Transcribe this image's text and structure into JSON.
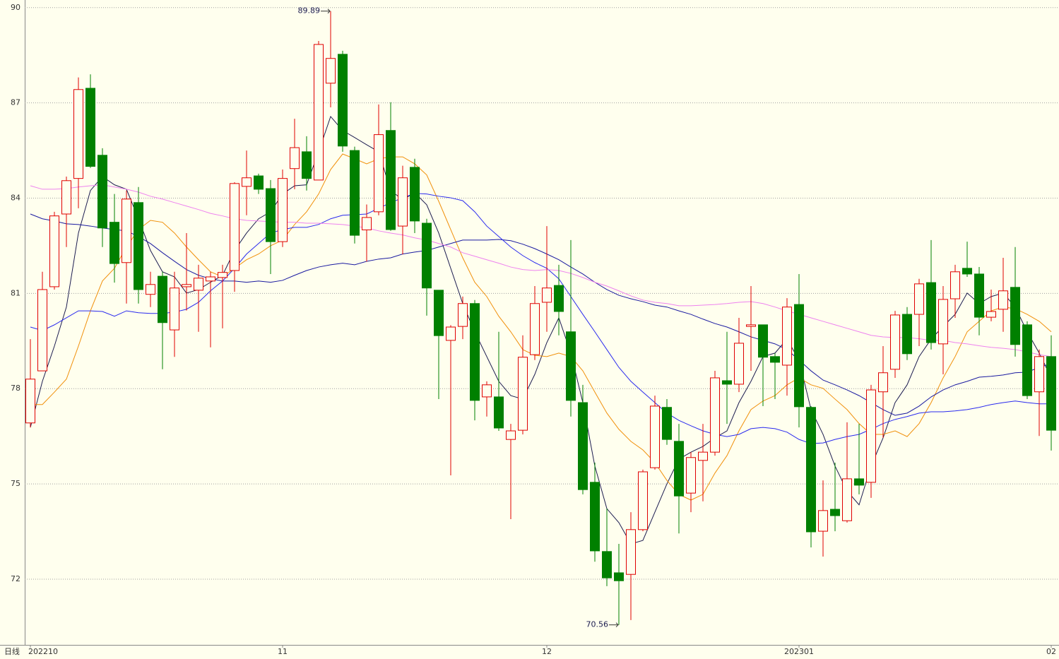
{
  "chart_data": {
    "type": "candlestick",
    "axis_label": "日线",
    "ylim": [
      69.93,
      90.24
    ],
    "yticks": [
      72,
      75,
      78,
      81,
      84,
      87,
      90
    ],
    "grid": true,
    "up_color": "#e00000",
    "down_color": "#008000",
    "categories": [
      "202210",
      null,
      null,
      null,
      null,
      null,
      null,
      null,
      null,
      null,
      null,
      null,
      null,
      null,
      null,
      null,
      null,
      null,
      null,
      null,
      null,
      "11",
      null,
      null,
      null,
      null,
      null,
      null,
      null,
      null,
      null,
      null,
      null,
      null,
      null,
      null,
      null,
      null,
      null,
      null,
      null,
      null,
      null,
      "12",
      null,
      null,
      null,
      null,
      null,
      null,
      null,
      null,
      null,
      null,
      null,
      null,
      null,
      null,
      null,
      null,
      null,
      null,
      null,
      null,
      "202301",
      null,
      null,
      null,
      null,
      null,
      null,
      null,
      null,
      null,
      null,
      null,
      null,
      null,
      null,
      null,
      null,
      null,
      null,
      null,
      null,
      "02"
    ],
    "open": [
      76.92,
      78.56,
      81.21,
      83.5,
      84.62,
      87.46,
      85.35,
      83.24,
      81.97,
      83.86,
      80.97,
      81.54,
      79.85,
      81.21,
      81.1,
      81.39,
      81.5,
      81.72,
      84.37,
      84.7,
      84.3,
      82.63,
      84.93,
      85.46,
      84.57,
      87.62,
      88.53,
      85.5,
      83.0,
      83.57,
      86.13,
      83.12,
      84.97,
      83.21,
      81.1,
      79.52,
      79.96,
      80.68,
      77.74,
      77.74,
      76.4,
      76.69,
      79.07,
      80.72,
      81.25,
      79.79,
      77.56,
      75.05,
      72.87,
      72.2,
      72.15,
      73.56,
      75.51,
      77.41,
      76.34,
      74.71,
      75.74,
      76.0,
      78.25,
      78.14,
      79.96,
      80.01,
      79.01,
      78.74,
      80.65,
      77.41,
      73.51,
      74.2,
      73.84,
      75.16,
      75.05,
      77.9,
      78.61,
      80.34,
      80.34,
      81.34,
      79.41,
      80.83,
      81.79,
      81.61,
      80.25,
      80.5,
      81.19,
      80.01,
      77.9,
      79.01
    ],
    "high": [
      79.56,
      81.68,
      83.57,
      84.68,
      87.8,
      87.9,
      85.57,
      84.13,
      84.24,
      84.35,
      81.68,
      81.68,
      81.68,
      82.9,
      81.9,
      81.68,
      81.9,
      84.5,
      85.5,
      84.77,
      84.57,
      84.9,
      86.5,
      85.95,
      88.95,
      89.89,
      88.64,
      85.62,
      83.8,
      86.95,
      87.02,
      85.02,
      85.24,
      83.35,
      81.1,
      80.0,
      80.9,
      80.79,
      78.23,
      79.79,
      76.89,
      79.68,
      81.23,
      83.12,
      81.9,
      82.68,
      78.12,
      75.67,
      74.22,
      73.11,
      74.11,
      75.45,
      77.78,
      77.67,
      76.89,
      76.0,
      76.89,
      78.56,
      79.79,
      80.23,
      81.23,
      80.01,
      79.12,
      80.85,
      81.61,
      77.45,
      75.11,
      75.67,
      76.94,
      76.89,
      78.12,
      79.34,
      80.45,
      80.57,
      81.46,
      82.68,
      81.23,
      81.9,
      82.63,
      81.83,
      81.12,
      82.12,
      82.46,
      80.12,
      79.23,
      79.68
    ],
    "low": [
      76.78,
      78.56,
      81.12,
      82.46,
      83.68,
      84.95,
      82.46,
      81.34,
      80.68,
      80.68,
      80.57,
      78.61,
      79.0,
      80.46,
      79.79,
      79.3,
      79.9,
      81.05,
      83.46,
      84.13,
      81.61,
      82.46,
      84.28,
      84.24,
      84.57,
      86.86,
      85.46,
      82.57,
      82.0,
      83.46,
      82.97,
      82.23,
      82.9,
      80.3,
      77.67,
      75.27,
      79.56,
      77.0,
      77.12,
      76.67,
      73.89,
      76.56,
      78.9,
      79.79,
      79.68,
      77.12,
      74.67,
      72.55,
      71.78,
      70.56,
      70.71,
      73.51,
      75.45,
      76.23,
      73.44,
      74.11,
      74.45,
      75.89,
      76.89,
      77.89,
      78.56,
      77.45,
      77.67,
      77.78,
      76.78,
      73.0,
      72.71,
      73.51,
      73.78,
      74.67,
      74.56,
      76.45,
      78.34,
      78.9,
      79.34,
      79.23,
      78.45,
      80.23,
      81.52,
      79.68,
      80.12,
      79.79,
      79.01,
      77.67,
      76.51,
      76.05
    ],
    "close": [
      78.3,
      81.12,
      83.44,
      84.55,
      87.42,
      85.0,
      83.06,
      81.94,
      83.97,
      81.12,
      81.28,
      80.08,
      81.17,
      81.28,
      81.48,
      81.52,
      81.66,
      84.46,
      84.64,
      84.28,
      82.63,
      84.62,
      85.59,
      84.62,
      88.84,
      88.4,
      85.64,
      82.83,
      83.39,
      86.0,
      83.01,
      84.64,
      83.28,
      81.17,
      79.67,
      79.94,
      80.68,
      77.63,
      78.12,
      76.76,
      76.67,
      78.99,
      80.68,
      81.17,
      80.43,
      77.63,
      74.82,
      72.89,
      72.04,
      71.95,
      73.56,
      75.38,
      77.45,
      76.4,
      74.62,
      75.83,
      76.0,
      78.34,
      78.14,
      79.43,
      80.01,
      78.99,
      78.83,
      80.57,
      77.43,
      73.49,
      74.16,
      74.0,
      75.16,
      74.96,
      77.96,
      78.5,
      80.32,
      79.1,
      81.3,
      79.45,
      80.81,
      81.68,
      81.61,
      80.25,
      80.43,
      81.08,
      79.39,
      77.78,
      79.01,
      76.69
    ],
    "lines": [
      {
        "color": "#1c1c50",
        "values": [
          76.78,
          78.23,
          79.34,
          80.57,
          82.9,
          84.24,
          84.68,
          84.42,
          84.28,
          83.35,
          82.35,
          81.68,
          81.52,
          81.01,
          81.12,
          81.35,
          81.57,
          82.35,
          82.9,
          83.35,
          83.57,
          84.13,
          84.39,
          84.42,
          85.46,
          86.57,
          86.13,
          85.91,
          85.68,
          85.46,
          84.24,
          83.95,
          84.17,
          83.79,
          82.9,
          81.79,
          80.68,
          79.79,
          79.01,
          78.23,
          77.78,
          77.67,
          78.45,
          79.45,
          80.23,
          79.12,
          77.56,
          75.56,
          74.22,
          73.78,
          73.11,
          73.22,
          74.11,
          75.0,
          75.78,
          76.0,
          76.18,
          76.45,
          76.67,
          77.56,
          78.23,
          79.01,
          79.12,
          79.56,
          78.9,
          77.34,
          76.56,
          75.56,
          74.78,
          74.34,
          75.56,
          76.45,
          77.56,
          78.12,
          79.01,
          79.56,
          79.96,
          80.34,
          81.01,
          80.68,
          80.9,
          81.01,
          80.57,
          79.79,
          79.12,
          78.34
        ]
      },
      {
        "color": "#f0900a",
        "values": [
          77.5,
          77.5,
          77.89,
          78.3,
          79.34,
          80.45,
          81.39,
          81.79,
          82.46,
          83.01,
          83.3,
          83.24,
          82.9,
          82.46,
          82.06,
          81.68,
          81.52,
          81.79,
          82.06,
          82.24,
          82.5,
          82.68,
          83.17,
          83.57,
          84.13,
          84.9,
          85.39,
          85.24,
          85.08,
          85.24,
          85.3,
          85.3,
          85.08,
          84.73,
          83.9,
          83.01,
          82.12,
          81.35,
          80.9,
          80.28,
          79.79,
          79.23,
          79.05,
          79.01,
          79.12,
          79.01,
          78.56,
          77.89,
          77.23,
          76.72,
          76.34,
          76.07,
          75.67,
          75.11,
          74.67,
          74.49,
          74.67,
          75.34,
          75.89,
          76.67,
          77.34,
          77.61,
          77.78,
          78.12,
          78.34,
          78.12,
          78.01,
          77.67,
          77.34,
          76.9,
          76.56,
          76.56,
          76.67,
          76.49,
          76.9,
          77.56,
          78.34,
          79.01,
          79.79,
          80.12,
          80.45,
          80.57,
          80.52,
          80.34,
          80.12,
          79.79
        ]
      },
      {
        "color": "#1a1aa0",
        "values": [
          83.5,
          83.35,
          83.28,
          83.19,
          83.17,
          83.12,
          83.06,
          83.01,
          82.97,
          82.79,
          82.57,
          82.28,
          82.01,
          81.75,
          81.57,
          81.46,
          81.39,
          81.39,
          81.35,
          81.39,
          81.35,
          81.41,
          81.57,
          81.72,
          81.83,
          81.9,
          81.95,
          81.9,
          82.01,
          82.08,
          82.12,
          82.24,
          82.3,
          82.35,
          82.46,
          82.57,
          82.68,
          82.68,
          82.68,
          82.7,
          82.66,
          82.55,
          82.41,
          82.24,
          82.06,
          81.83,
          81.61,
          81.35,
          81.12,
          80.94,
          80.83,
          80.74,
          80.63,
          80.57,
          80.45,
          80.34,
          80.19,
          80.05,
          79.94,
          79.79,
          79.63,
          79.52,
          79.41,
          79.23,
          78.9,
          78.56,
          78.27,
          78.12,
          77.96,
          77.78,
          77.56,
          77.34,
          77.16,
          77.23,
          77.45,
          77.74,
          77.96,
          78.12,
          78.23,
          78.36,
          78.39,
          78.43,
          78.5,
          78.52,
          78.67,
          78.79
        ]
      },
      {
        "color": "#2a2aee",
        "values": [
          79.94,
          79.83,
          80.01,
          80.23,
          80.45,
          80.45,
          80.43,
          80.28,
          80.45,
          80.39,
          80.37,
          80.37,
          80.41,
          80.5,
          80.72,
          81.08,
          81.39,
          81.79,
          82.24,
          82.57,
          82.9,
          83.01,
          83.08,
          83.08,
          83.17,
          83.35,
          83.46,
          83.48,
          83.5,
          83.68,
          83.86,
          84.01,
          84.15,
          84.13,
          84.06,
          84.01,
          83.92,
          83.57,
          83.12,
          82.79,
          82.46,
          82.19,
          81.97,
          81.79,
          81.46,
          80.9,
          80.34,
          79.79,
          79.23,
          78.67,
          78.23,
          77.89,
          77.56,
          77.23,
          77.0,
          76.83,
          76.67,
          76.56,
          76.49,
          76.56,
          76.74,
          76.78,
          76.74,
          76.63,
          76.4,
          76.27,
          76.29,
          76.4,
          76.49,
          76.56,
          76.72,
          76.9,
          77.03,
          77.12,
          77.23,
          77.27,
          77.27,
          77.3,
          77.34,
          77.41,
          77.5,
          77.56,
          77.61,
          77.56,
          77.52,
          77.52
        ]
      },
      {
        "color": "#ee82ee",
        "values": [
          84.39,
          84.28,
          84.28,
          84.3,
          84.35,
          84.39,
          84.42,
          84.35,
          84.28,
          84.19,
          84.06,
          83.97,
          83.86,
          83.75,
          83.64,
          83.52,
          83.44,
          83.35,
          83.3,
          83.28,
          83.26,
          83.24,
          83.24,
          83.21,
          83.21,
          83.19,
          83.17,
          83.12,
          83.06,
          82.97,
          82.9,
          82.84,
          82.75,
          82.68,
          82.57,
          82.46,
          82.28,
          82.17,
          82.06,
          81.95,
          81.83,
          81.75,
          81.72,
          81.75,
          81.72,
          81.63,
          81.5,
          81.35,
          81.23,
          81.08,
          80.92,
          80.79,
          80.72,
          80.68,
          80.61,
          80.61,
          80.63,
          80.65,
          80.68,
          80.72,
          80.74,
          80.68,
          80.57,
          80.45,
          80.34,
          80.23,
          80.12,
          80.01,
          79.9,
          79.79,
          79.68,
          79.63,
          79.61,
          79.61,
          79.57,
          79.52,
          79.52,
          79.45,
          79.41,
          79.35,
          79.3,
          79.27,
          79.23,
          79.16,
          79.07,
          79.01
        ]
      }
    ]
  }
}
